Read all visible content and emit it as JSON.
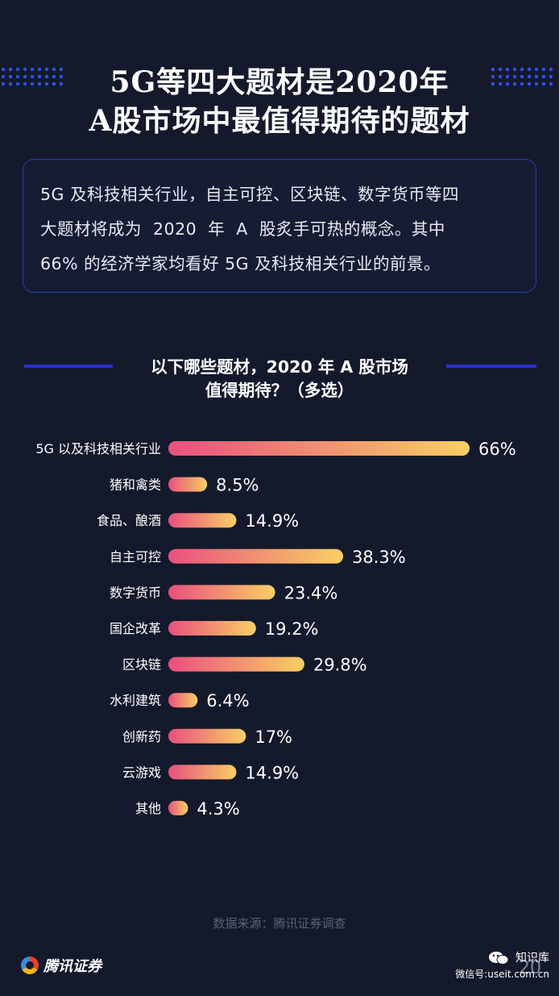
{
  "title": {
    "line1": "5G等四大题材是2020年",
    "line2": "A股市场中最值得期待的题材"
  },
  "intro": {
    "lines": [
      "5G 及科技相关行业，自主可控、区块链、数字货币等四",
      "大题材将成为  2020  年  A  股炙手可热的概念。其中",
      "66% 的经济学家均看好 5G 及科技相关行业的前景。"
    ]
  },
  "question": {
    "line1": "以下哪些题材，2020 年 A 股市场",
    "line2": "值得期待？（多选）"
  },
  "chart_data": {
    "type": "bar",
    "orientation": "horizontal",
    "categories": [
      "5G 以及科技相关行业",
      "猪和禽类",
      "食品、酿酒",
      "自主可控",
      "数字货币",
      "国企改革",
      "区块链",
      "水利建筑",
      "创新药",
      "云游戏",
      "其他"
    ],
    "values": [
      66,
      8.5,
      14.9,
      38.3,
      23.4,
      19.2,
      29.8,
      6.4,
      17,
      14.9,
      4.3
    ],
    "value_labels": [
      "66%",
      "8.5%",
      "14.9%",
      "38.3%",
      "23.4%",
      "19.2%",
      "29.8%",
      "6.4%",
      "17%",
      "14.9%",
      "4.3%"
    ],
    "unit": "%",
    "grid": false,
    "colors": {
      "bar_start": "#e8507f",
      "bar_end": "#f9cf63",
      "label": "#ffffff"
    }
  },
  "source": "数据来源：腾讯证券调查",
  "logo": {
    "text": "腾讯证券",
    "icon": "tencent-securities-logo-icon"
  },
  "watermark": {
    "name": "知识库",
    "account": "微信号:useit.com.cn",
    "icon": "wechat-icon"
  },
  "page_number": "20",
  "colors": {
    "background": "#141a2c",
    "accent_blue": "#2533c7",
    "box_border": "#2b3bb0"
  }
}
